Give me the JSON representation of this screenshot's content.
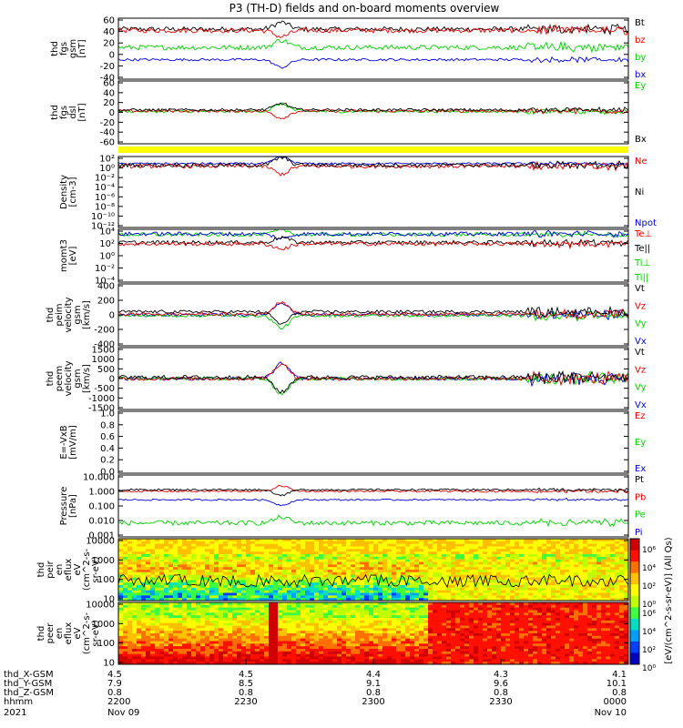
{
  "title": "P3 (TH-D) fields and on-board moments overview",
  "colors": {
    "black": "#000000",
    "red": "#e60000",
    "green": "#00d000",
    "blue": "#0000e0",
    "yellow": "#ffff00"
  },
  "chart_data": {
    "type": "line",
    "x_range": [
      "2021-11-09 22:00",
      "2021-11-10 00:00"
    ],
    "panels": [
      {
        "id": "fgs-gsm",
        "ylabel": [
          "thd",
          "fgs",
          "gsm",
          "[nT]"
        ],
        "yticks": [
          "60",
          "40",
          "20",
          "0",
          "-20",
          "-40"
        ],
        "ylim": [
          -40,
          60
        ],
        "legend": [
          {
            "text": "Bt",
            "color": "black"
          },
          {
            "text": "bz",
            "color": "red"
          },
          {
            "text": "by",
            "color": "green"
          },
          {
            "text": "bx",
            "color": "blue"
          }
        ],
        "series": [
          {
            "color": "black",
            "level": 42,
            "amp": 4,
            "spike": 1.4
          },
          {
            "color": "red",
            "level": 40,
            "amp": 4,
            "spike": 1.3
          },
          {
            "color": "green",
            "level": 12,
            "amp": 4,
            "spike": 1.5
          },
          {
            "color": "blue",
            "level": -8,
            "amp": 2,
            "spike": 1.6
          }
        ]
      },
      {
        "id": "fgs-dsl",
        "ylabel": [
          "thd",
          "fgs",
          "dsl",
          "[nT]"
        ],
        "yticks": [
          "60",
          "40",
          "20",
          "0",
          "-20",
          "-40",
          "-60"
        ],
        "ylim": [
          -70,
          60
        ],
        "legend": [
          {
            "text": "Ey",
            "color": "green"
          },
          {
            "text": "Bx",
            "color": "black"
          }
        ],
        "series": [
          {
            "color": "green",
            "level": -3,
            "amp": 3,
            "spike": 1.5
          },
          {
            "color": "red",
            "level": -2,
            "amp": 3,
            "spike": 1.4
          },
          {
            "color": "black",
            "level": 0,
            "amp": 3,
            "spike": 1.3
          }
        ]
      },
      {
        "id": "density",
        "ylabel": [
          "Density",
          "[cm-3]"
        ],
        "yticks": [
          "10²",
          "10⁰",
          "10⁻²",
          "10⁻⁴",
          "10⁻⁶",
          "10⁻⁸",
          "10⁻¹⁰",
          "10⁻¹²"
        ],
        "ylim": [
          -12,
          2
        ],
        "log": true,
        "legend": [
          {
            "text": "Ne",
            "color": "red"
          },
          {
            "text": "Ni",
            "color": "black"
          },
          {
            "text": "Npot",
            "color": "blue"
          }
        ],
        "series": [
          {
            "color": "blue",
            "level": 0.6,
            "amp": 0.2,
            "spike": 1.2
          },
          {
            "color": "red",
            "level": 0.1,
            "amp": 0.4,
            "spike": 1.4
          },
          {
            "color": "black",
            "level": 0.3,
            "amp": 0.4,
            "spike": 1.3
          }
        ]
      },
      {
        "id": "mom-temp",
        "ylabel": [
          "momt3",
          "[eV]"
        ],
        "yticks": [
          "10⁴",
          "10²",
          "10⁰",
          "10⁻²",
          "10⁻⁴"
        ],
        "ylim": [
          -4,
          4
        ],
        "log": true,
        "legend": [
          {
            "text": "Te⊥",
            "color": "red"
          },
          {
            "text": "Te||",
            "color": "black"
          },
          {
            "text": "Ti⊥",
            "color": "green"
          },
          {
            "text": "Ti||",
            "color": "green"
          }
        ],
        "series": [
          {
            "color": "green",
            "level": 3.2,
            "amp": 0.3,
            "spike": 1.1
          },
          {
            "color": "blue",
            "level": 3.3,
            "amp": 0.3,
            "spike": 1.1
          },
          {
            "color": "black",
            "level": 2.0,
            "amp": 0.3,
            "spike": 1.2
          },
          {
            "color": "red",
            "level": 1.8,
            "amp": 0.3,
            "spike": 1.2
          }
        ]
      },
      {
        "id": "peim-velocity",
        "ylabel": [
          "thd",
          "peim",
          "velocity",
          "gsm",
          "[km/s]"
        ],
        "yticks": [
          "400",
          "200",
          "0",
          "-200",
          "-400"
        ],
        "ylim": [
          -400,
          400
        ],
        "legend": [
          {
            "text": "Vt",
            "color": "black"
          },
          {
            "text": "Vz",
            "color": "red"
          },
          {
            "text": "Vy",
            "color": "green"
          },
          {
            "text": "Vx",
            "color": "blue"
          }
        ],
        "series": [
          {
            "color": "blue",
            "level": 0,
            "amp": 20,
            "spike": 2.5
          },
          {
            "color": "green",
            "level": -10,
            "amp": 20,
            "spike": 2.5
          },
          {
            "color": "red",
            "level": 10,
            "amp": 20,
            "spike": 2.5
          },
          {
            "color": "black",
            "level": 40,
            "amp": 20,
            "spike": 2.5
          }
        ]
      },
      {
        "id": "peem-velocity",
        "ylabel": [
          "thd",
          "peem",
          "velocity",
          "gsm",
          "[km/s]"
        ],
        "yticks": [
          "1500",
          "1000",
          "500",
          "0",
          "-500",
          "-1000",
          "-1500"
        ],
        "ylim": [
          -1500,
          1500
        ],
        "legend": [
          {
            "text": "Vt",
            "color": "black"
          },
          {
            "text": "Vz",
            "color": "red"
          },
          {
            "text": "Vy",
            "color": "green"
          },
          {
            "text": "Vx",
            "color": "blue"
          }
        ],
        "series": [
          {
            "color": "blue",
            "level": 0,
            "amp": 90,
            "spike": 3
          },
          {
            "color": "green",
            "level": 0,
            "amp": 90,
            "spike": 3
          },
          {
            "color": "red",
            "level": 0,
            "amp": 90,
            "spike": 3
          },
          {
            "color": "black",
            "level": 60,
            "amp": 100,
            "spike": 3
          }
        ]
      },
      {
        "id": "e-field",
        "ylabel": [
          "E=-VxB",
          "[mV/m]"
        ],
        "yticks": [
          "1.0",
          "0.8",
          "0.6",
          "0.4",
          "0.2",
          "0.0"
        ],
        "ylim": [
          0,
          1
        ],
        "legend": [
          {
            "text": "Ez",
            "color": "red"
          },
          {
            "text": "Ey",
            "color": "green"
          },
          {
            "text": "Ex",
            "color": "blue"
          }
        ],
        "series": []
      },
      {
        "id": "pressure",
        "ylabel": [
          "Pressure",
          "[nPa]"
        ],
        "yticks": [
          "10.000",
          "1.000",
          "0.100",
          "0.010",
          "0.001"
        ],
        "ylim": [
          -3,
          1
        ],
        "log": true,
        "legend": [
          {
            "text": "Pt",
            "color": "black"
          },
          {
            "text": "Pb",
            "color": "red"
          },
          {
            "text": "Pe",
            "color": "green"
          },
          {
            "text": "Pi",
            "color": "blue"
          }
        ],
        "series": [
          {
            "color": "green",
            "level": -2.1,
            "amp": 0.15,
            "spike": 1.2
          },
          {
            "color": "blue",
            "level": -0.6,
            "amp": 0.05,
            "spike": 1.1
          },
          {
            "color": "red",
            "level": -0.05,
            "amp": 0.06,
            "spike": 1.1
          },
          {
            "color": "black",
            "level": 0.05,
            "amp": 0.06,
            "spike": 1.1
          }
        ]
      },
      {
        "id": "peir-eflux",
        "ylabel": [
          "thd",
          "peir",
          "en",
          "eflux",
          "eV",
          "(cm^2-s-",
          "sr-eV)"
        ],
        "yticks": [
          "10000",
          "1000",
          "100",
          "10"
        ],
        "ylim": [
          0.7,
          4.2
        ],
        "log": true,
        "spectrogram": "ion"
      },
      {
        "id": "peer-eflux",
        "ylabel": [
          "thd",
          "peer",
          "en",
          "eflux",
          "eV",
          "(cm^2-s-",
          "sr-eV)"
        ],
        "yticks": [
          "10000",
          "1000",
          "100",
          "10"
        ],
        "ylim": [
          0.7,
          4.2
        ],
        "log": true,
        "spectrogram": "electron"
      }
    ],
    "colorbar": {
      "label": "[eV/(cm^2-s-sr-eV)] (All Qs)",
      "ticks": [
        "10⁶",
        "10⁴",
        "10²",
        "10⁰"
      ]
    },
    "xaxis": {
      "rows": [
        {
          "label": "thd_X-GSM",
          "values": [
            "4.5",
            "4.5",
            "4.4",
            "4.3",
            "4.1"
          ]
        },
        {
          "label": "thd_Y-GSM",
          "values": [
            "7.9",
            "8.5",
            "9.1",
            "9.6",
            "10.1"
          ]
        },
        {
          "label": "thd_Z-GSM",
          "values": [
            "0.8",
            "0.8",
            "0.8",
            "0.8",
            "0.8"
          ]
        },
        {
          "label": "hhmm",
          "values": [
            "2200",
            "2230",
            "2300",
            "2330",
            "0000"
          ]
        }
      ],
      "year": "2021",
      "dates": [
        {
          "text": "Nov 09",
          "at": 0
        },
        {
          "text": "Nov 10",
          "at": 4
        }
      ]
    }
  }
}
